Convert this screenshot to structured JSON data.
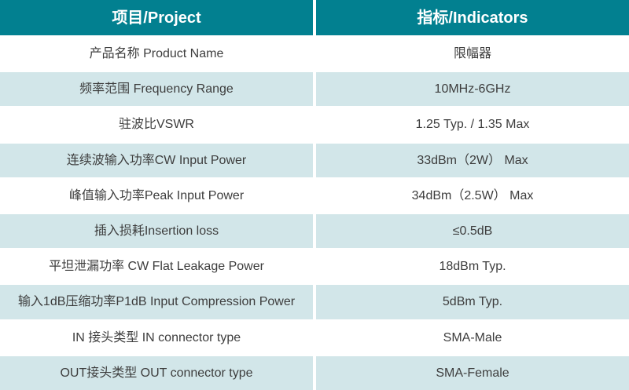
{
  "table": {
    "title_semantics": "RF limiter specification table",
    "colors": {
      "header_background": "#028090",
      "header_text": "#ffffff",
      "alt_row_background": "#d2e6e9",
      "body_text": "#3d3d3d",
      "divider": "#ffffff"
    },
    "header": {
      "project_label": "项目/Project",
      "indicators_label": "指标/Indicators"
    },
    "rows": [
      {
        "project": "产品名称 Product Name",
        "indicator": "限幅器"
      },
      {
        "project": "频率范围 Frequency Range",
        "indicator": "10MHz-6GHz"
      },
      {
        "project": "驻波比VSWR",
        "indicator": "1.25 Typ. / 1.35 Max"
      },
      {
        "project": "连续波输入功率CW Input Power",
        "indicator": "33dBm（2W） Max"
      },
      {
        "project": "峰值输入功率Peak Input Power",
        "indicator": "34dBm（2.5W） Max"
      },
      {
        "project": "插入损耗Insertion loss",
        "indicator": "≤0.5dB"
      },
      {
        "project": "平坦泄漏功率 CW Flat Leakage Power",
        "indicator": "18dBm Typ."
      },
      {
        "project": "输入1dB压缩功率P1dB Input Compression Power",
        "indicator": "5dBm Typ."
      },
      {
        "project": "IN 接头类型 IN connector type",
        "indicator": "SMA-Male"
      },
      {
        "project": "OUT接头类型 OUT connector type",
        "indicator": "SMA-Female"
      }
    ]
  }
}
